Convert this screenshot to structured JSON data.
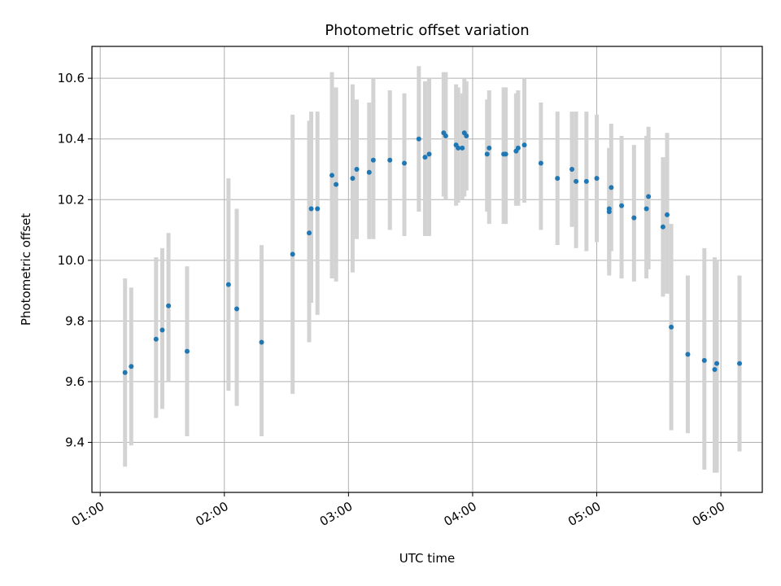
{
  "chart_data": {
    "type": "scatter",
    "title": "Photometric offset variation",
    "xlabel": "UTC time",
    "ylabel": "Photometric offset",
    "xlim": [
      "00:56",
      "06:20"
    ],
    "ylim": [
      9.235,
      10.705
    ],
    "grid": true,
    "x_ticks": [
      "01:00",
      "02:00",
      "03:00",
      "04:00",
      "05:00",
      "06:00"
    ],
    "y_ticks": [
      "9.4",
      "9.6",
      "9.8",
      "10.0",
      "10.2",
      "10.4",
      "10.6"
    ],
    "colors": {
      "points": "#1f77b4",
      "error_bars": "#d3d3d3",
      "grid": "#b0b0b0"
    },
    "series": [
      {
        "x": [
          "01:12",
          "01:15",
          "01:27",
          "01:30",
          "01:33",
          "01:42",
          "02:02",
          "02:06",
          "02:18",
          "02:33",
          "02:41",
          "02:42",
          "02:45",
          "02:52",
          "02:54",
          "03:02",
          "03:04",
          "03:10",
          "03:12",
          "03:20",
          "03:27",
          "03:34",
          "03:37",
          "03:39",
          "03:46",
          "03:47",
          "03:52",
          "03:53",
          "03:55",
          "03:56",
          "03:57",
          "04:07",
          "04:08",
          "04:15",
          "04:16",
          "04:21",
          "04:22",
          "04:25",
          "04:33",
          "04:41",
          "04:48",
          "04:50",
          "04:55",
          "05:00",
          "05:06",
          "05:06",
          "05:07",
          "05:12",
          "05:18",
          "05:24",
          "05:25",
          "05:32",
          "05:34",
          "05:36",
          "05:44",
          "05:52",
          "05:57",
          "05:58",
          "06:09"
        ],
        "y": [
          9.63,
          9.65,
          9.74,
          9.77,
          9.85,
          9.7,
          9.92,
          9.84,
          9.73,
          10.02,
          10.09,
          10.17,
          10.17,
          10.28,
          10.25,
          10.27,
          10.3,
          10.29,
          10.33,
          10.33,
          10.32,
          10.4,
          10.34,
          10.35,
          10.42,
          10.41,
          10.38,
          10.37,
          10.37,
          10.42,
          10.41,
          10.35,
          10.37,
          10.35,
          10.35,
          10.36,
          10.37,
          10.38,
          10.32,
          10.27,
          10.3,
          10.26,
          10.26,
          10.27,
          10.16,
          10.17,
          10.24,
          10.18,
          10.14,
          10.17,
          10.21,
          10.11,
          10.15,
          9.78,
          9.69,
          9.67,
          9.64,
          9.66,
          9.66
        ],
        "error_low": [
          9.32,
          9.39,
          9.48,
          9.51,
          9.6,
          9.42,
          9.57,
          9.52,
          9.42,
          9.56,
          9.73,
          9.86,
          9.82,
          9.94,
          9.93,
          9.96,
          10.07,
          10.07,
          10.07,
          10.1,
          10.08,
          10.16,
          10.08,
          10.08,
          10.21,
          10.2,
          10.18,
          10.19,
          10.2,
          10.21,
          10.23,
          10.16,
          10.12,
          10.12,
          10.12,
          10.18,
          10.18,
          10.19,
          10.1,
          10.05,
          10.11,
          10.04,
          10.03,
          10.06,
          9.95,
          9.97,
          10.03,
          9.94,
          9.93,
          9.94,
          9.97,
          9.88,
          9.89,
          9.44,
          9.43,
          9.31,
          9.3,
          9.3,
          9.37
        ],
        "error_high": [
          9.94,
          9.91,
          10.01,
          10.04,
          10.09,
          9.98,
          10.27,
          10.17,
          10.05,
          10.48,
          10.46,
          10.49,
          10.49,
          10.62,
          10.57,
          10.58,
          10.53,
          10.52,
          10.6,
          10.56,
          10.55,
          10.64,
          10.59,
          10.6,
          10.62,
          10.62,
          10.58,
          10.57,
          10.55,
          10.6,
          10.59,
          10.53,
          10.56,
          10.57,
          10.57,
          10.55,
          10.56,
          10.6,
          10.52,
          10.49,
          10.49,
          10.49,
          10.49,
          10.48,
          10.37,
          10.37,
          10.45,
          10.41,
          10.38,
          10.41,
          10.44,
          10.34,
          10.42,
          10.12,
          9.95,
          10.04,
          10.01,
          10.0,
          9.95
        ]
      }
    ]
  }
}
